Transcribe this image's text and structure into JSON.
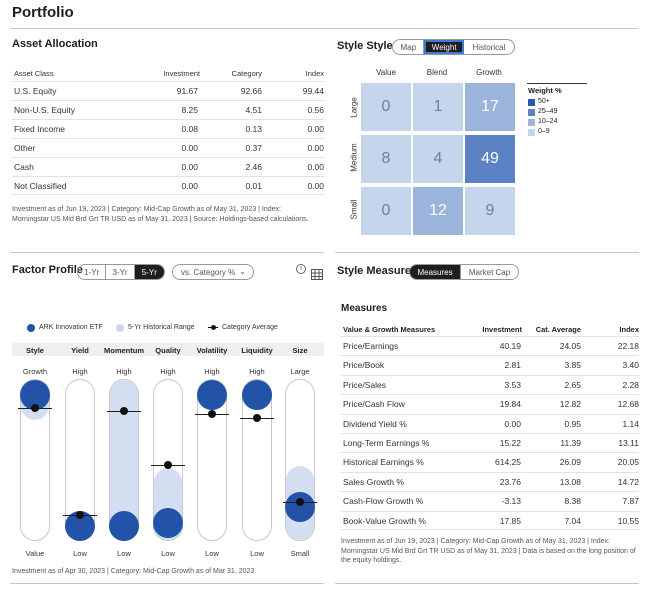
{
  "page": {
    "title": "Portfolio"
  },
  "asset_allocation": {
    "title": "Asset Allocation",
    "headers": [
      "Asset Class",
      "Investment",
      "Category",
      "Index"
    ],
    "rows": [
      [
        "U.S. Equity",
        "91.67",
        "92.66",
        "99.44"
      ],
      [
        "Non-U.S. Equity",
        "8.25",
        "4.51",
        "0.56"
      ],
      [
        "Fixed Income",
        "0.08",
        "0.13",
        "0.00"
      ],
      [
        "Other",
        "0.00",
        "0.37",
        "0.00"
      ],
      [
        "Cash",
        "0.00",
        "2.46",
        "0.00"
      ],
      [
        "Not Classified",
        "0.00",
        "0.01",
        "0.00"
      ]
    ],
    "note": "Investment as of Jun 19, 2023 | Category: Mid-Cap Growth as of May 31, 2023 | Index: Morningstar US Mid Brd Grt TR USD as of May 31, 2023 | Source: Holdings-based calculations."
  },
  "style_box": {
    "title": "Style Style",
    "tabs": [
      "Map",
      "Weight",
      "Historical"
    ],
    "active_tab": "Weight",
    "columns": [
      "Value",
      "Blend",
      "Growth"
    ],
    "rows": [
      "Large",
      "Medium",
      "Small"
    ],
    "cells": [
      [
        "0",
        "1",
        "17"
      ],
      [
        "8",
        "4",
        "49"
      ],
      [
        "0",
        "12",
        "9"
      ]
    ],
    "legend_title": "Weight %",
    "legend": [
      "50+",
      "25–49",
      "10–24",
      "0–9"
    ],
    "colors": {
      "c50": "#2e56a6",
      "c25": "#5b82c4",
      "c10": "#9bb4dc",
      "c0": "#c5d5ec"
    }
  },
  "factor_profile": {
    "title": "Factor Profile",
    "periods": [
      "1-Yr",
      "3-Yr",
      "5-Yr"
    ],
    "active_period": "5-Yr",
    "compare": "vs. Category %",
    "legend": {
      "fund": "ARK Innovation ETF",
      "range": "5-Yr Historical Range",
      "category": "Category Average"
    },
    "factors": [
      {
        "name": "Style",
        "top": "Growth",
        "bottom": "Value"
      },
      {
        "name": "Yield",
        "top": "High",
        "bottom": "Low"
      },
      {
        "name": "Momentum",
        "top": "High",
        "bottom": "Low"
      },
      {
        "name": "Quality",
        "top": "High",
        "bottom": "Low"
      },
      {
        "name": "Volatility",
        "top": "High",
        "bottom": "Low"
      },
      {
        "name": "Liquidity",
        "top": "High",
        "bottom": "Low"
      },
      {
        "name": "Size",
        "top": "Large",
        "bottom": "Small"
      }
    ],
    "note": "Investment as of Apr 30, 2023 | Category: Mid-Cap Growth as of Mar 31, 2023"
  },
  "style_measures": {
    "title": "Style Measures",
    "tabs": [
      "Measures",
      "Market Cap"
    ],
    "active_tab": "Measures",
    "section": "Measures",
    "headers": [
      "Value & Growth Measures",
      "Investment",
      "Cat. Average",
      "Index"
    ],
    "rows": [
      [
        "Price/Earnings",
        "40.19",
        "24.05",
        "22.18"
      ],
      [
        "Price/Book",
        "2.81",
        "3.85",
        "3.40"
      ],
      [
        "Price/Sales",
        "3.53",
        "2.65",
        "2.28"
      ],
      [
        "Price/Cash Flow",
        "19.84",
        "12.82",
        "12.68"
      ],
      [
        "Dividend Yield %",
        "0.00",
        "0.95",
        "1.14"
      ],
      [
        "Long-Term Earnings %",
        "15.22",
        "11.39",
        "13.11"
      ],
      [
        "Historical Earnings %",
        "614.25",
        "26.09",
        "20.05"
      ],
      [
        "Sales Growth %",
        "23.76",
        "13.08",
        "14.72"
      ],
      [
        "Cash-Flow Growth %",
        "-3.13",
        "8.38",
        "7.87"
      ],
      [
        "Book-Value Growth %",
        "17.85",
        "7.04",
        "10.55"
      ]
    ],
    "note": "Investment as of Jun 19, 2023 | Category: Mid-Cap Growth as of May 31, 2023 | Index: Morningstar US Mid Brd Grt TR USD as of May 31, 2023 | Data is based on the long position of the equity holdings."
  }
}
